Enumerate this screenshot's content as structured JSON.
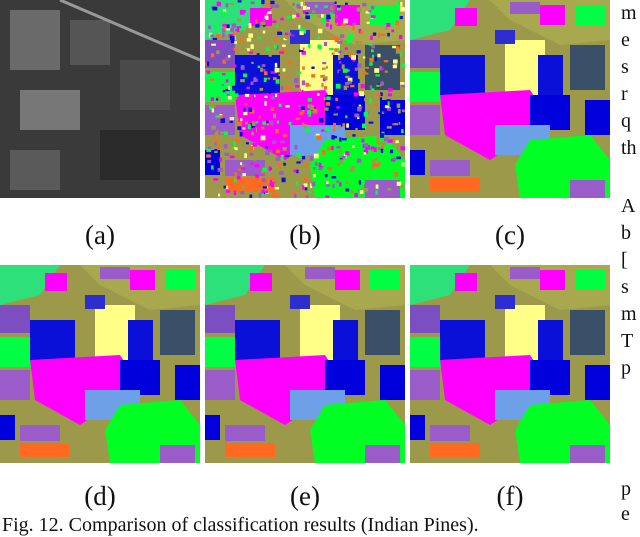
{
  "figure": {
    "panel_labels": [
      "(a)",
      "(b)",
      "(c)",
      "(d)",
      "(e)",
      "(f)"
    ],
    "caption": "Fig. 12. Comparison of classification results (Indian Pines).",
    "side_text_fragments": [
      "m",
      "e",
      "s",
      "r",
      "q",
      "th",
      "A",
      "b",
      "[",
      "s",
      "m",
      "T",
      "p",
      "p",
      "e"
    ]
  }
}
